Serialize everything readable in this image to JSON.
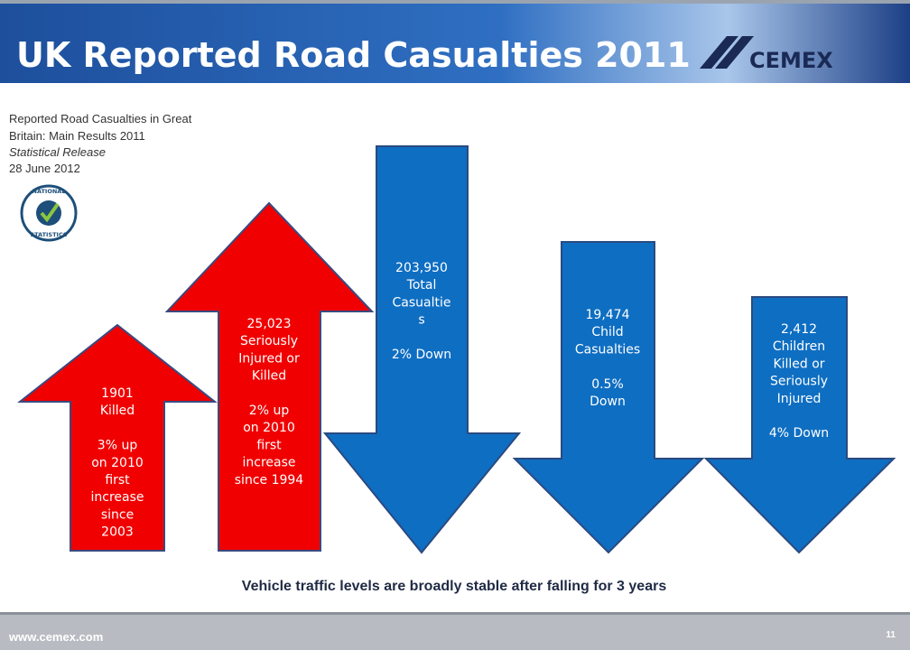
{
  "header": {
    "title": "UK Reported Road Casualties 2011",
    "logo": "CEMEX"
  },
  "source": {
    "lines": [
      "Reported Road Casualties in Great",
      "Britain: Main Results 2011",
      "Statistical Release",
      "28 June 2012"
    ]
  },
  "badge": {
    "top": "NATIONAL",
    "bottom": "STATISTICS"
  },
  "arrows": [
    {
      "blocks": [
        [
          "1901",
          "Killed"
        ],
        [
          "3% up",
          "on 2010",
          "first",
          "increase",
          "since",
          "2003"
        ]
      ]
    },
    {
      "blocks": [
        [
          "25,023",
          "Seriously",
          "Injured or",
          "Killed"
        ],
        [
          "2% up",
          "on 2010",
          "first",
          "increase",
          "since 1994"
        ]
      ]
    },
    {
      "blocks": [
        [
          "203,950",
          "Total",
          "Casualtie",
          "s"
        ],
        [
          "2% Down"
        ]
      ]
    },
    {
      "blocks": [
        [
          "19,474",
          "Child",
          "Casualties"
        ],
        [
          "0.5%",
          "Down"
        ]
      ]
    },
    {
      "blocks": [
        [
          "2,412",
          "Children",
          "Killed or",
          "Seriously",
          "Injured"
        ],
        [
          "4% Down"
        ]
      ]
    }
  ],
  "caption": "Vehicle traffic levels are broadly stable after falling for 3 years",
  "footer": {
    "url": "www.cemex.com",
    "page": "11"
  }
}
